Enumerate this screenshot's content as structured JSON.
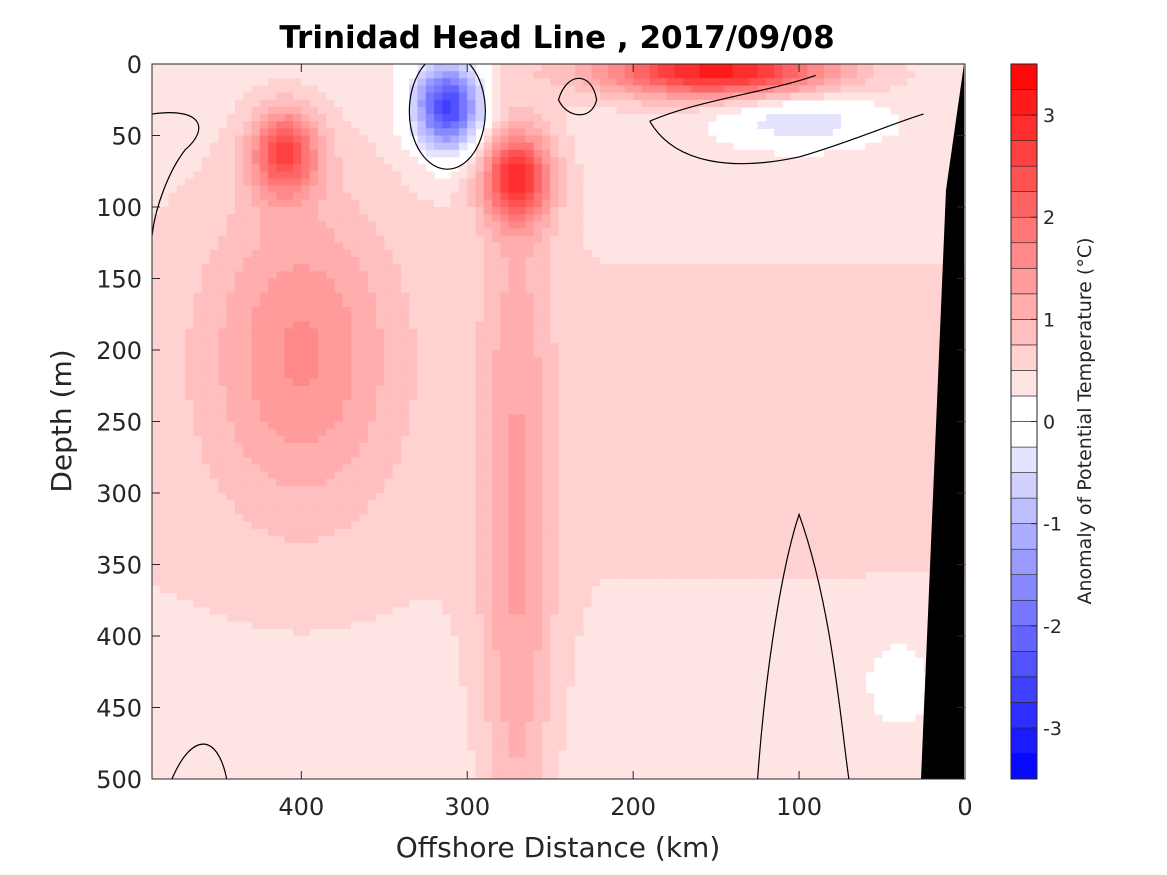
{
  "chart_data": {
    "type": "heatmap",
    "subtype": "filled-contour section",
    "title": "Trinidad Head Line , 2017/09/08",
    "xlabel": "Offshore Distance (km)",
    "ylabel": "Depth (m)",
    "xlim": [
      490,
      0
    ],
    "ylim": [
      0,
      500
    ],
    "x_reversed": true,
    "y_reversed": true,
    "xticks": [
      400,
      300,
      200,
      100,
      0
    ],
    "yticks": [
      0,
      50,
      100,
      150,
      200,
      250,
      300,
      350,
      400,
      450,
      500
    ],
    "colorbar": {
      "label": "Anomaly of Potential Temperature (°C)",
      "range": [
        -3.5,
        3.5
      ],
      "step": 0.25,
      "ticks": [
        3,
        2,
        1,
        0,
        -1,
        -2,
        -3
      ],
      "colormap": "blue-white-red",
      "low_color": "#0000ff",
      "high_color": "#ff0000"
    },
    "features": [
      {
        "feature": "cold core",
        "x_km": 312,
        "depth_m": 30,
        "anomaly": -3.0
      },
      {
        "feature": "warm core",
        "x_km": 410,
        "depth_m": 62,
        "anomaly": 2.0
      },
      {
        "feature": "warm core",
        "x_km": 270,
        "depth_m": 80,
        "anomaly": 2.2
      },
      {
        "feature": "surface warm layer",
        "x_km": 150,
        "depth_m": 5,
        "anomaly": 2.8
      },
      {
        "feature": "subsurface cool band",
        "x_km": 100,
        "depth_m": 40,
        "anomaly": -0.9
      },
      {
        "feature": "warm plume",
        "x_km": 270,
        "depth_m": 350,
        "anomaly": 0.8
      },
      {
        "feature": "warm region",
        "x_km": 400,
        "depth_m": 200,
        "anomaly": 1.0
      },
      {
        "feature": "nearshore cool patch",
        "x_km": 40,
        "depth_m": 430,
        "anomaly": -0.4
      }
    ],
    "bathymetry": {
      "color": "#000000",
      "x_km": [
        25,
        0
      ],
      "depth_m": [
        500,
        0
      ]
    }
  }
}
